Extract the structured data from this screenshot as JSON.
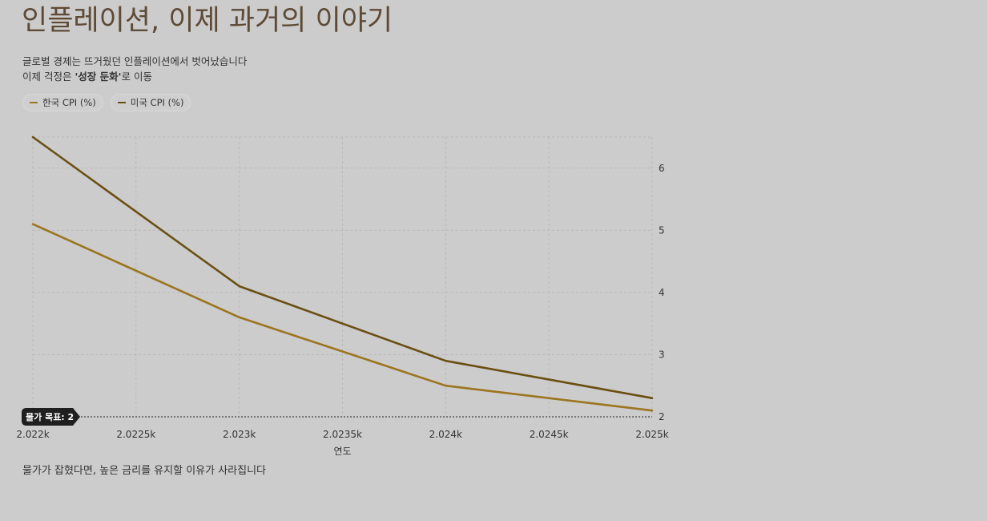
{
  "header": {
    "title": "인플레이션, 이제 과거의 이야기",
    "subtitle_line1": "글로벌 경제는 뜨거웠던 인플레이션에서 벗어났습니다",
    "subtitle_line2_pre": "이제 걱정은 ",
    "subtitle_line2_bold": "'성장 둔화'",
    "subtitle_line2_post": "로 이동"
  },
  "footnote": "물가가 잡혔다면, 높은 금리를 유지할 이유가 사라집니다",
  "colors": {
    "korea": "#9b7520",
    "usa": "#6b4f12",
    "grid": "#b9b9b9",
    "axis_text": "#333333"
  },
  "chart_data": {
    "type": "line",
    "x": [
      2022,
      2023,
      2024,
      2025
    ],
    "series": [
      {
        "name": "한국 CPI (%)",
        "values": [
          5.1,
          3.6,
          2.5,
          2.1
        ],
        "color": "#9b7520"
      },
      {
        "name": "미국 CPI (%)",
        "values": [
          6.5,
          4.1,
          2.9,
          2.3
        ],
        "color": "#6b4f12"
      }
    ],
    "xlabel": "연도",
    "ylabel": "",
    "xlim": [
      2022,
      2025
    ],
    "ylim": [
      2,
      6.5
    ],
    "x_ticks": [
      2022,
      2022.5,
      2023,
      2023.5,
      2024,
      2024.5,
      2025
    ],
    "x_tick_labels": [
      "2.022k",
      "2.0225k",
      "2.023k",
      "2.0235k",
      "2.024k",
      "2.0245k",
      "2.025k"
    ],
    "y_ticks": [
      2,
      3,
      4,
      5,
      6
    ],
    "y_tick_labels": [
      "2",
      "3",
      "4",
      "5",
      "6"
    ],
    "y_axis_side": "right",
    "grid": true,
    "legend_position": "top-left",
    "reference_line": {
      "value": 2,
      "label": "물가 목표: 2"
    }
  }
}
